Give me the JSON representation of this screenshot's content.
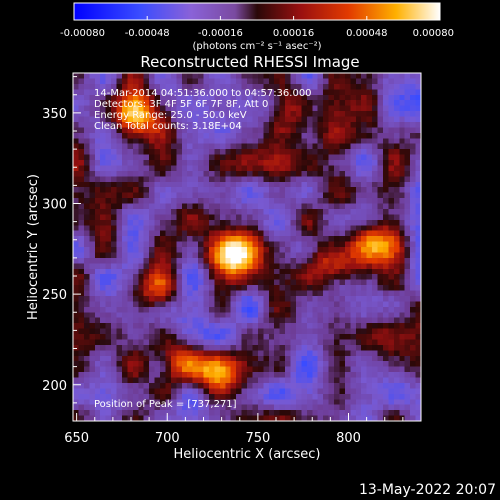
{
  "chart_data": {
    "type": "heatmap",
    "title": "Reconstructed RHESSI Image",
    "xlabel": "Heliocentric X (arcsec)",
    "ylabel": "Heliocentric Y (arcsec)",
    "xlim": [
      648,
      840
    ],
    "ylim": [
      180,
      372
    ],
    "x_ticks": [
      650,
      700,
      750,
      800
    ],
    "y_ticks": [
      200,
      250,
      300,
      350
    ],
    "colorbar": {
      "ticks": [
        "-0.00080",
        "-0.00048",
        "-0.00016",
        "0.00016",
        "0.00048",
        "0.00080"
      ],
      "units_label": "(photons cm⁻² s⁻¹ asec⁻²)",
      "range": [
        -0.0008,
        0.0008
      ]
    },
    "annotations": [
      "14-Mar-2014 04:51:36.000 to 04:57:36.000",
      "Detectors: 3F 4F 5F 6F 7F 8F, Att 0",
      "Energy Range: 25.0 - 50.0 keV",
      "Clean    Total counts: 3.18E+04"
    ],
    "peak_label": "Position of Peak = [737,271]",
    "peak": [
      737,
      271
    ],
    "bright_sources": [
      {
        "x": 737,
        "y": 271,
        "value": 0.0008
      },
      {
        "x": 792,
        "y": 270,
        "value": 0.00068
      },
      {
        "x": 815,
        "y": 278,
        "value": 0.0006
      },
      {
        "x": 683,
        "y": 348,
        "value": 0.00066
      },
      {
        "x": 728,
        "y": 206,
        "value": 0.0007
      },
      {
        "x": 706,
        "y": 212,
        "value": 0.00055
      },
      {
        "x": 694,
        "y": 252,
        "value": 0.00052
      },
      {
        "x": 770,
        "y": 354,
        "value": 0.00045
      },
      {
        "x": 825,
        "y": 226,
        "value": 0.0003
      }
    ],
    "footer_date": "13-May-2022 20:07"
  },
  "colors": {
    "background": "#000000",
    "text": "#ffffff",
    "colormap": [
      "#0000ff",
      "#3344ff",
      "#6a4fc8",
      "#8a52b0",
      "#7a1a1a",
      "#c81e00",
      "#ff6a00",
      "#ffe020",
      "#ffffff"
    ]
  }
}
